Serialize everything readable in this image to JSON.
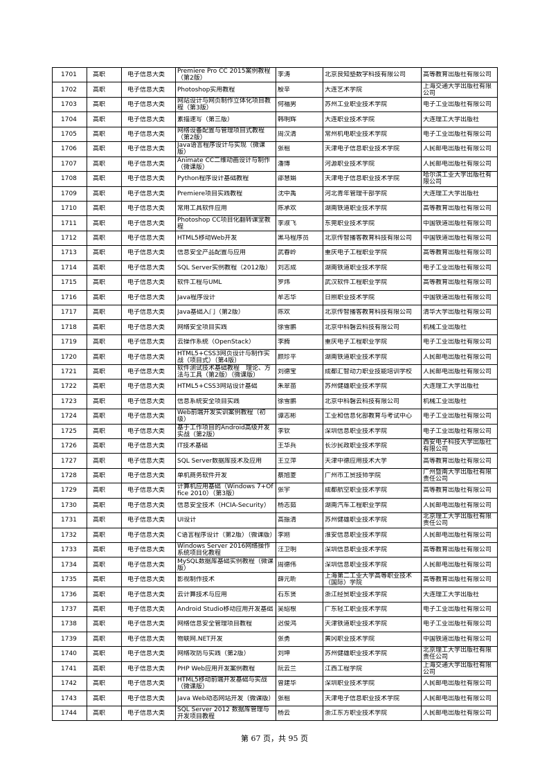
{
  "table": {
    "rows": [
      [
        "1701",
        "高职",
        "电子信息大类",
        "Premiere Pro CC 2015案例教程（第2版）",
        "李涛",
        "北京良知塾数字科技有限公司",
        "高等教育出版社有限公司"
      ],
      [
        "1702",
        "高职",
        "电子信息大类",
        "Photoshop实用教程",
        "殷辛",
        "大连艺术学院",
        "上海交通大学出版社有限公司"
      ],
      [
        "1703",
        "高职",
        "电子信息大类",
        "网站设计与网页制作立体化项目教程（第3版）",
        "何福男",
        "苏州工业职业技术学院",
        "电子工业出版社有限公司"
      ],
      [
        "1704",
        "高职",
        "电子信息大类",
        "素描速写（第三版）",
        "韩明辉",
        "大连职业技术学院",
        "大连理工大学出版社"
      ],
      [
        "1705",
        "高职",
        "电子信息大类",
        "网络设备配置与管理项目式教程（第2版）",
        "周汉清",
        "常州机电职业技术学院",
        "电子工业出版社有限公司"
      ],
      [
        "1706",
        "高职",
        "电子信息大类",
        "Java语言程序设计与实现（微课版）",
        "张租",
        "天津电子信息职业技术学院",
        "人民邮电出版社有限公司"
      ],
      [
        "1707",
        "高职",
        "电子信息大类",
        "Animate CC二维动画设计与制作（微课版）",
        "潘博",
        "河源职业技术学院",
        "人民邮电出版社有限公司"
      ],
      [
        "1708",
        "高职",
        "电子信息大类",
        "Python程序设计基础教程",
        "邵慧娟",
        "天津电子信息职业技术学院",
        "哈尔滨工业大学出版社有限公司"
      ],
      [
        "1709",
        "高职",
        "电子信息大类",
        "Premiere项目实践教程",
        "沈中禹",
        "河北青年管理干部学院",
        "大连理工大学出版社"
      ],
      [
        "1710",
        "高职",
        "电子信息大类",
        "常用工具软件应用",
        "陈承欢",
        "湖南铁道职业技术学院",
        "高等教育出版社有限公司"
      ],
      [
        "1711",
        "高职",
        "电子信息大类",
        "Photoshop CC项目化翻转课堂教程",
        "李淑飞",
        "东莞职业技术学院",
        "中国铁道出版社有限公司"
      ],
      [
        "1712",
        "高职",
        "电子信息大类",
        "HTML5移动Web开发",
        "黑马程序员",
        "北京传智播客教育科技有限公司",
        "中国铁道出版社有限公司"
      ],
      [
        "1713",
        "高职",
        "电子信息大类",
        "信息安全产品配置与应用",
        "武春岭",
        "重庆电子工程职业学院",
        "高等教育出版社有限公司"
      ],
      [
        "1714",
        "高职",
        "电子信息大类",
        "SQL Server实例教程（2012版）",
        "刘志成",
        "湖南铁道职业技术学院",
        "电子工业出版社有限公司"
      ],
      [
        "1715",
        "高职",
        "电子信息大类",
        "软件工程与UML",
        "罗炜",
        "武汉软件工程职业学院",
        "高等教育出版社有限公司"
      ],
      [
        "1716",
        "高职",
        "电子信息大类",
        "Java程序设计",
        "牟志华",
        "日照职业技术学院",
        "中国铁道出版社有限公司"
      ],
      [
        "1717",
        "高职",
        "电子信息大类",
        "Java基础入门（第2版）",
        "陈欢",
        "北京传智播客教育科技有限公司",
        "清华大学出版社有限公司"
      ],
      [
        "1718",
        "高职",
        "电子信息大类",
        "网络安全项目实践",
        "徐雪鹏",
        "北京中科磐云科技有限公司",
        "机械工业出版社"
      ],
      [
        "1719",
        "高职",
        "电子信息大类",
        "云操作系统（OpenStack）",
        "李腾",
        "重庆电子工程职业学院",
        "电子工业出版社有限公司"
      ],
      [
        "1720",
        "高职",
        "电子信息大类",
        "HTML5+CSS3网页设计与制作实战（项目式）（第4版）",
        "颜珍平",
        "湖南铁道职业技术学院",
        "人民邮电出版社有限公司"
      ],
      [
        "1721",
        "高职",
        "电子信息大类",
        "软件测试技术基础教程　理论、方法与工具（第2版）（微课版）",
        "刘德宝",
        "成都汇智动力职业技能培训学校",
        "人民邮电出版社有限公司"
      ],
      [
        "1722",
        "高职",
        "电子信息大类",
        "HTML5+CSS3网站设计基础",
        "朱翠苗",
        "苏州健雄职业技术学院",
        "大连理工大学出版社"
      ],
      [
        "1723",
        "高职",
        "电子信息大类",
        "信息系统安全项目实践",
        "徐雪鹏",
        "北京中科磐云科技有限公司",
        "机械工业出版社"
      ],
      [
        "1724",
        "高职",
        "电子信息大类",
        "Web前端开发实训案例教程（初级）",
        "谭志彬",
        "工业和信息化部教育与考试中心",
        "电子工业出版社有限公司"
      ],
      [
        "1725",
        "高职",
        "电子信息大类",
        "基于工作项目的Android高级开发实战（第2版）",
        "李钦",
        "深圳信息职业技术学院",
        "电子工业出版社有限公司"
      ],
      [
        "1726",
        "高职",
        "电子信息大类",
        "IT技术基础",
        "王华兵",
        "长沙民政职业技术学院",
        "西安电子科技大学出版社有限公司"
      ],
      [
        "1727",
        "高职",
        "电子信息大类",
        "SQL Server数据库技术及应用",
        "王立萍",
        "天津中德应用技术大学",
        "高等教育出版社有限公司"
      ],
      [
        "1728",
        "高职",
        "电子信息大类",
        "单机商务软件开发",
        "蔡旭菱",
        "广州市工贸技师学院",
        "广州暨南大学出版社有限责任公司"
      ],
      [
        "1729",
        "高职",
        "电子信息大类",
        "计算机应用基础（Windows 7+Office 2010）（第3版）",
        "张宇",
        "成都航空职业技术学院",
        "高等教育出版社有限公司"
      ],
      [
        "1730",
        "高职",
        "电子信息大类",
        "信息安全技术（HCIA-Security）",
        "杨志茹",
        "湖南汽车工程职业学院",
        "人民邮电出版社有限公司"
      ],
      [
        "1731",
        "高职",
        "电子信息大类",
        "UI设计",
        "高振清",
        "苏州健雄职业技术学院",
        "北京理工大学出版社有限责任公司"
      ],
      [
        "1732",
        "高职",
        "电子信息大类",
        "C语言程序设计（第2版）（微课版）",
        "李刚",
        "淮安信息职业技术学院",
        "人民邮电出版社有限公司"
      ],
      [
        "1733",
        "高职",
        "电子信息大类",
        "Windows Server 2016网络操作系统项目化教程",
        "汪卫明",
        "深圳信息职业技术学院",
        "高等教育出版社有限公司"
      ],
      [
        "1734",
        "高职",
        "电子信息大类",
        "MySQL数据库基础实例教程（微课版）",
        "周德伟",
        "深圳信息职业技术学院",
        "人民邮电出版社有限公司"
      ],
      [
        "1735",
        "高职",
        "电子信息大类",
        "影视制作技术",
        "薛元昕",
        "上海第二工业大学高等职业技术（国际）学院",
        "高等教育出版社有限公司"
      ],
      [
        "1736",
        "高职",
        "电子信息大类",
        "云计算技术与应用",
        "石东贤",
        "浙江经贸职业技术学院",
        "大连理工大学出版社"
      ],
      [
        "1737",
        "高职",
        "电子信息大类",
        "Android Studio移动应用开发基础",
        "吴绍根",
        "广东轻工职业技术学院",
        "电子工业出版社有限公司"
      ],
      [
        "1738",
        "高职",
        "电子信息大类",
        "网络信息安全管理项目教程",
        "迟俊鸿",
        "天津铁道职业技术学院",
        "电子工业出版社有限公司"
      ],
      [
        "1739",
        "高职",
        "电子信息大类",
        "物联网.NET开发",
        "张勇",
        "黄冈职业技术学院",
        "中国铁道出版社有限公司"
      ],
      [
        "1740",
        "高职",
        "电子信息大类",
        "网络攻防与实践（第2版）",
        "刘坤",
        "苏州健雄职业技术学院",
        "北京理工大学出版社有限责任公司"
      ],
      [
        "1741",
        "高职",
        "电子信息大类",
        "PHP Web应用开发案例教程",
        "阮云兰",
        "江西工程学院",
        "上海交通大学出版社有限公司"
      ],
      [
        "1742",
        "高职",
        "电子信息大类",
        "HTML5移动前端开发基础与实战（微课版）",
        "曾建华",
        "深圳职业技术学院",
        "人民邮电出版社有限公司"
      ],
      [
        "1743",
        "高职",
        "电子信息大类",
        "Java Web动态网站开发（微课版）",
        "张租",
        "天津电子信息职业技术学院",
        "人民邮电出版社有限公司"
      ],
      [
        "1744",
        "高职",
        "电子信息大类",
        "SQL Server 2012 数据库管理与开发项目教程",
        "杨云",
        "浙江东方职业技术学院",
        "人民邮电出版社有限公司"
      ]
    ]
  },
  "footer": {
    "page_label": "第 67 页，共 95 页"
  }
}
